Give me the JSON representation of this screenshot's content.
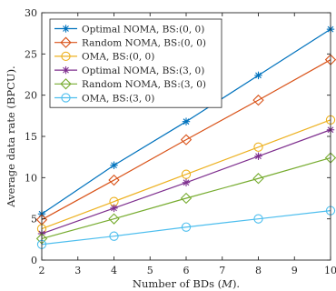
{
  "chart_data": {
    "type": "line",
    "title": "",
    "xlabel": "Number of BDs (",
    "xlabel_var": "M",
    "xlabel_suffix": ").",
    "ylabel": "Average data rate (BPCU).",
    "xlim": [
      2,
      10
    ],
    "ylim": [
      0,
      30
    ],
    "xticks": [
      "2",
      "3",
      "4",
      "5",
      "6",
      "7",
      "8",
      "9",
      "10"
    ],
    "yticks": [
      "0",
      "5",
      "10",
      "15",
      "20",
      "25",
      "30"
    ],
    "grid": false,
    "legend_position": "top-left",
    "x": [
      2,
      4,
      6,
      8,
      10
    ],
    "series": [
      {
        "name": "Optimal NOMA, BS:(0, 0)",
        "color": "#0072BD",
        "marker": "star",
        "values": [
          5.6,
          11.5,
          16.8,
          22.4,
          28.0
        ]
      },
      {
        "name": "Random NOMA, BS:(0, 0)",
        "color": "#D95319",
        "marker": "diamond",
        "values": [
          4.9,
          9.7,
          14.6,
          19.4,
          24.3
        ]
      },
      {
        "name": "OMA, BS:(0, 0)",
        "color": "#EDB120",
        "marker": "circle",
        "values": [
          3.8,
          7.1,
          10.4,
          13.7,
          17.0
        ]
      },
      {
        "name": "Optimal NOMA, BS:(3, 0)",
        "color": "#7E2F8E",
        "marker": "star",
        "values": [
          3.2,
          6.3,
          9.4,
          12.6,
          15.8
        ]
      },
      {
        "name": "Random NOMA, BS:(3, 0)",
        "color": "#77AC30",
        "marker": "diamond",
        "values": [
          2.6,
          5.0,
          7.5,
          9.9,
          12.4
        ]
      },
      {
        "name": "OMA, BS:(3, 0)",
        "color": "#4DBEEE",
        "marker": "circle",
        "values": [
          1.9,
          2.9,
          4.0,
          5.0,
          6.0
        ]
      }
    ]
  }
}
